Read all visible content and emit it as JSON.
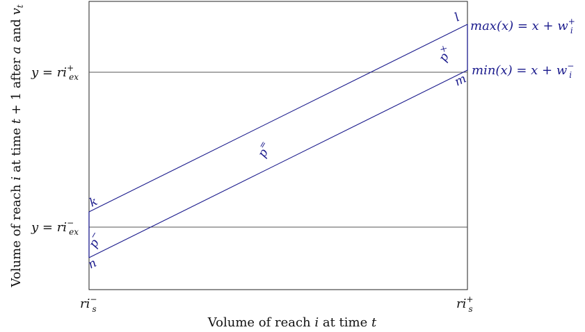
{
  "colors": {
    "frame": "#222222",
    "guide": "#444444",
    "accent": "#1a1a8c",
    "text": "#111111"
  },
  "axes": {
    "x_label": {
      "pre": "Volume of reach ",
      "var": "i",
      "post": " at time ",
      "var2": "t"
    },
    "y_label": {
      "pre": "Volume of reach ",
      "var": "i",
      "mid": " at time ",
      "var2": "t",
      "plus": " + 1 after ",
      "var3": "a",
      "and": " and ",
      "var4": "v",
      "sub": "t"
    },
    "x_ticks": {
      "left": {
        "base": "ri",
        "sub": "s",
        "sup": "−"
      },
      "right": {
        "base": "ri",
        "sub": "s",
        "sup": "+"
      }
    }
  },
  "thresholds": {
    "upper": {
      "lhs": "y = ",
      "base": "ri",
      "sub": "ex",
      "sup": "+"
    },
    "lower": {
      "lhs": "y = ",
      "base": "ri",
      "sub": "ex",
      "sup": "−"
    }
  },
  "lines": {
    "max": {
      "fn": "max",
      "arg": "(x)",
      "eq": " = x + w",
      "sub": "i",
      "sup": "+"
    },
    "min": {
      "fn": "min",
      "arg": "(x)",
      "eq": " = x + w",
      "sub": "i",
      "sup": "−"
    }
  },
  "points": {
    "k": "k",
    "l": "l",
    "m": "m",
    "n": "n"
  },
  "regions": {
    "p_plus": {
      "base": "p",
      "mark": "×"
    },
    "p_eq": {
      "base": "p",
      "mark": "="
    },
    "p_minus": {
      "base": "p",
      "mark": "−"
    }
  }
}
